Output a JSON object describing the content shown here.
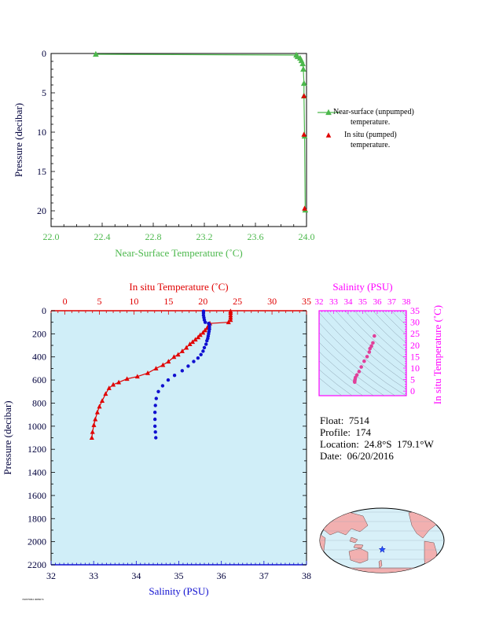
{
  "colors": {
    "near_surface": "#4cb84c",
    "insitu_temp": "#e00000",
    "salinity": "#1010d0",
    "salinity_axis": "#ff00ff",
    "ts_points": "#e0409a",
    "axis_dark": "#00003c",
    "profile_bg": "#d0eef8",
    "land": "#f2b0b0",
    "ocean": "#d8f0f8"
  },
  "info": {
    "float_label": "Float:",
    "float_value": "7514",
    "profile_label": "Profile:",
    "profile_value": "174",
    "location_label": "Location:",
    "location_value": "24.8°S  179.1°W",
    "date_label": "Date:",
    "date_value": "06/20/2016"
  },
  "legend": {
    "near_surface_line1": "Near-surface (unpumped)",
    "near_surface_line2": "temperature.",
    "insitu_line1": "In situ (pumped)",
    "insitu_line2": "temperature."
  },
  "footer_id": "740675964 3086074",
  "chart_data": [
    {
      "type": "line",
      "xlabel": "Near-Surface Temperature (˚C)",
      "ylabel": "Pressure (decibar)",
      "xlim": [
        22.0,
        24.0
      ],
      "ylim": [
        22,
        0
      ],
      "xticks": [
        "22.0",
        "22.4",
        "22.8",
        "23.2",
        "23.6",
        "24.0"
      ],
      "yticks": [
        "0",
        "5",
        "10",
        "15",
        "20"
      ],
      "legend_position": "right",
      "series": [
        {
          "name": "Near-surface (unpumped) temperature.",
          "points": [
            [
              22.35,
              0.1
            ],
            [
              23.92,
              0.2
            ],
            [
              23.93,
              0.4
            ],
            [
              23.95,
              0.6
            ],
            [
              23.96,
              0.9
            ],
            [
              23.97,
              1.3
            ],
            [
              23.975,
              2.0
            ],
            [
              23.98,
              3.8
            ],
            [
              23.98,
              5.4
            ],
            [
              23.985,
              10.5
            ],
            [
              23.99,
              19.9
            ]
          ]
        },
        {
          "name": "In situ (pumped) temperature.",
          "points": [
            [
              23.98,
              5.4
            ],
            [
              23.98,
              10.3
            ],
            [
              23.985,
              19.7
            ]
          ]
        }
      ]
    },
    {
      "type": "scatter",
      "title": "In situ Temperature (˚C)",
      "xlabel": "Salinity (PSU)",
      "ylabel": "Pressure (decibar)",
      "x_top_ticks": [
        "0",
        "5",
        "10",
        "15",
        "20",
        "25",
        "30",
        "35"
      ],
      "x_top_range": [
        -2,
        35
      ],
      "x_bottom_ticks": [
        "32",
        "33",
        "34",
        "35",
        "36",
        "37",
        "38"
      ],
      "x_bottom_range": [
        32,
        38
      ],
      "yticks": [
        "0",
        "200",
        "400",
        "600",
        "800",
        "1000",
        "1200",
        "1400",
        "1600",
        "1800",
        "2000",
        "2200"
      ],
      "ylim": [
        2200,
        0
      ],
      "series": [
        {
          "name": "In situ Temperature (˚C)",
          "points": [
            [
              24.0,
              5
            ],
            [
              24.0,
              20
            ],
            [
              24.0,
              40
            ],
            [
              24.0,
              60
            ],
            [
              24.0,
              80
            ],
            [
              23.7,
              100
            ],
            [
              21.0,
              110
            ],
            [
              20.8,
              130
            ],
            [
              20.6,
              150
            ],
            [
              20.3,
              170
            ],
            [
              20.0,
              190
            ],
            [
              19.6,
              210
            ],
            [
              19.3,
              230
            ],
            [
              18.9,
              250
            ],
            [
              18.5,
              270
            ],
            [
              18.1,
              290
            ],
            [
              17.6,
              320
            ],
            [
              17.0,
              350
            ],
            [
              16.4,
              380
            ],
            [
              15.8,
              400
            ],
            [
              15.0,
              440
            ],
            [
              14.2,
              470
            ],
            [
              13.2,
              500
            ],
            [
              12.0,
              540
            ],
            [
              10.5,
              570
            ],
            [
              9.0,
              590
            ],
            [
              7.8,
              620
            ],
            [
              7.0,
              640
            ],
            [
              6.4,
              670
            ],
            [
              5.9,
              720
            ],
            [
              5.4,
              780
            ],
            [
              5.0,
              830
            ],
            [
              4.7,
              880
            ],
            [
              4.4,
              940
            ],
            [
              4.2,
              990
            ],
            [
              4.0,
              1050
            ],
            [
              3.9,
              1100
            ]
          ]
        },
        {
          "name": "Salinity (PSU)",
          "points": [
            [
              35.58,
              5
            ],
            [
              35.58,
              20
            ],
            [
              35.58,
              40
            ],
            [
              35.59,
              60
            ],
            [
              35.6,
              80
            ],
            [
              35.62,
              100
            ],
            [
              35.7,
              110
            ],
            [
              35.72,
              120
            ],
            [
              35.72,
              140
            ],
            [
              35.72,
              160
            ],
            [
              35.71,
              180
            ],
            [
              35.7,
              200
            ],
            [
              35.69,
              220
            ],
            [
              35.68,
              240
            ],
            [
              35.66,
              260
            ],
            [
              35.64,
              290
            ],
            [
              35.6,
              320
            ],
            [
              35.57,
              350
            ],
            [
              35.52,
              380
            ],
            [
              35.45,
              410
            ],
            [
              35.35,
              440
            ],
            [
              35.22,
              480
            ],
            [
              35.08,
              520
            ],
            [
              34.9,
              560
            ],
            [
              34.75,
              600
            ],
            [
              34.62,
              650
            ],
            [
              34.52,
              700
            ],
            [
              34.47,
              760
            ],
            [
              34.45,
              820
            ],
            [
              34.44,
              880
            ],
            [
              34.44,
              940
            ],
            [
              34.44,
              1000
            ],
            [
              34.45,
              1050
            ],
            [
              34.46,
              1100
            ]
          ]
        }
      ]
    },
    {
      "type": "scatter",
      "title": "Salinity (PSU)",
      "ylabel": "In situ Temperature (˚C)",
      "xticks": [
        "32",
        "33",
        "34",
        "35",
        "36",
        "37",
        "38"
      ],
      "xlim": [
        32,
        38
      ],
      "yticks": [
        "0",
        "5",
        "10",
        "15",
        "20",
        "25",
        "30",
        "35"
      ],
      "ylim": [
        -2,
        35
      ],
      "series": [
        {
          "name": "T-S",
          "points": [
            [
              35.8,
              24.0
            ],
            [
              35.7,
              21.0
            ],
            [
              35.6,
              19.6
            ],
            [
              35.5,
              18.5
            ],
            [
              35.45,
              17.0
            ],
            [
              35.3,
              15.0
            ],
            [
              35.1,
              13.0
            ],
            [
              34.9,
              10.5
            ],
            [
              34.75,
              8.5
            ],
            [
              34.6,
              7.0
            ],
            [
              34.5,
              5.9
            ],
            [
              34.47,
              5.0
            ],
            [
              34.45,
              4.4
            ],
            [
              34.45,
              3.9
            ]
          ]
        }
      ]
    }
  ],
  "map": {
    "float_marker": {
      "lon": -179.1,
      "lat": -24.8
    }
  }
}
